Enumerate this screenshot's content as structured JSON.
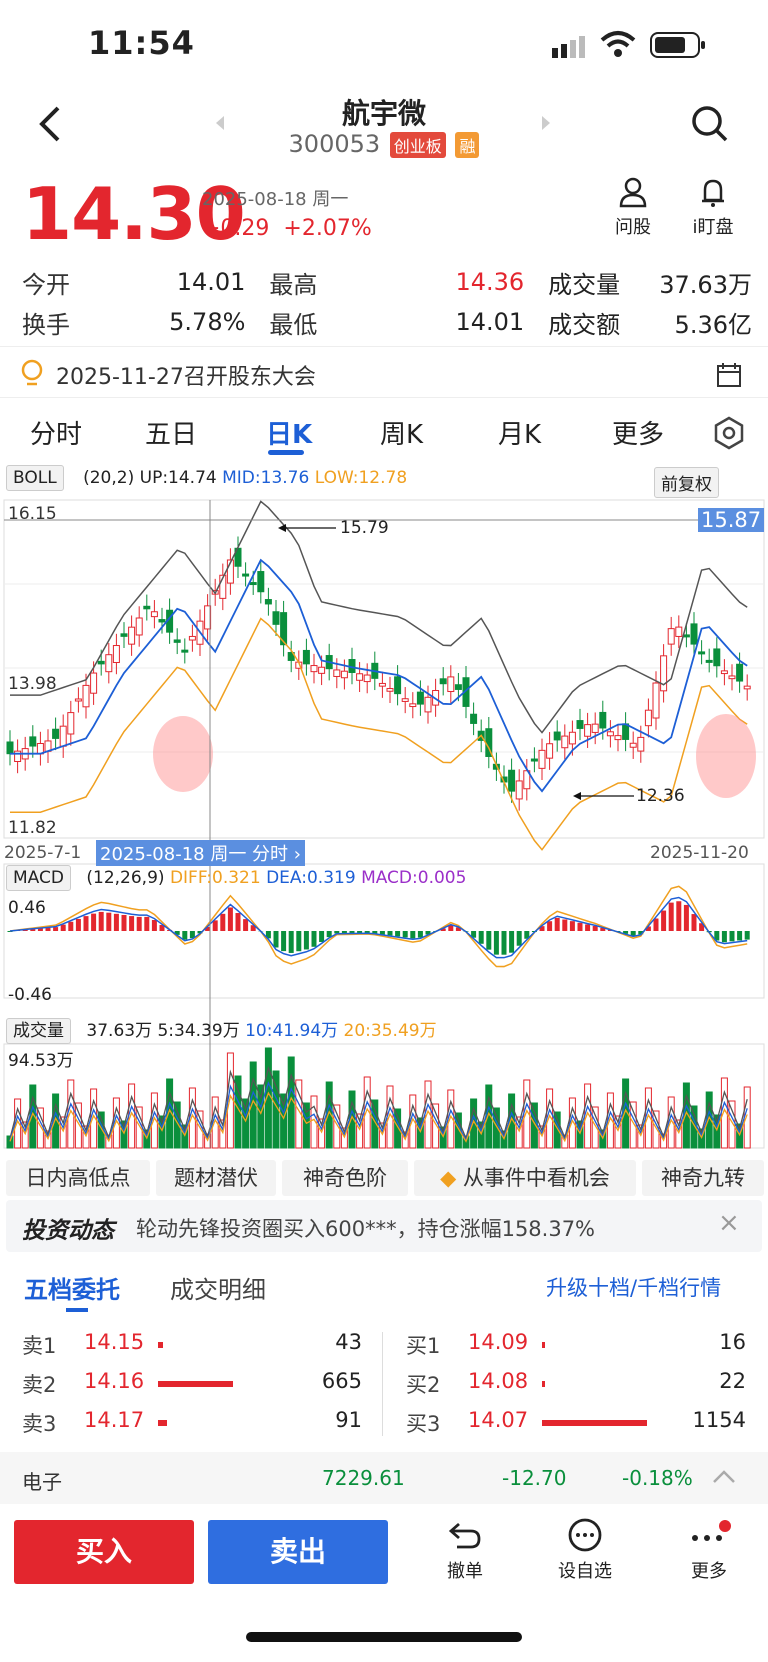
{
  "status": {
    "time": "11:54"
  },
  "header": {
    "title": "航宇微",
    "code": "300053",
    "board_tag": "创业板",
    "margin_tag": "融"
  },
  "quote": {
    "price": "14.30",
    "date": "2025-08-18 周一",
    "change": "+0.29",
    "change_pct": "+2.07%",
    "ask_label": "问股",
    "watch_label": "i盯盘"
  },
  "stats": {
    "open_label": "今开",
    "open": "14.01",
    "high_label": "最高",
    "high": "14.36",
    "vol_label": "成交量",
    "vol": "37.63万",
    "turnover_label": "换手",
    "turnover": "5.78%",
    "low_label": "最低",
    "low": "14.01",
    "amount_label": "成交额",
    "amount": "5.36亿"
  },
  "notice": {
    "text": "2025-11-27召开股东大会"
  },
  "tabs": [
    "分时",
    "五日",
    "日K",
    "周K",
    "月K",
    "更多"
  ],
  "active_tab": "日K",
  "boll": {
    "chip": "BOLL",
    "params": "(20,2)",
    "up": "UP:14.74",
    "mid": "MID:13.76",
    "low": "LOW:12.78",
    "adjust": "前复权",
    "y_top": "16.15",
    "y_mid": "13.98",
    "y_bottom": "11.82",
    "cursor_price": "15.87",
    "max_label": "15.79",
    "min_label": "12.36",
    "date_start": "2025-7-1",
    "date_cursor": "2025-08-18 周一 分时",
    "date_end": "2025-11-20"
  },
  "macd": {
    "chip": "MACD",
    "params": "(12,26,9)",
    "diff": "DIFF:0.321",
    "dea": "DEA:0.319",
    "macd": "MACD:0.005",
    "y_top": "0.46",
    "y_bottom": "-0.46"
  },
  "volume": {
    "chip": "成交量",
    "v": "37.63万",
    "ma5": "5:34.39万",
    "ma10": "10:41.94万",
    "ma20": "20:35.49万",
    "y_top": "94.53万"
  },
  "themes": [
    "日内高低点",
    "题材潜伏",
    "神奇色阶",
    "从事件中看机会",
    "神奇九转"
  ],
  "news": {
    "label": "投资动态",
    "text": "轮动先锋投资圈买入600***，持仓涨幅158.37%"
  },
  "orderbook": {
    "tab_active": "五档委托",
    "tab_other": "成交明细",
    "upgrade": "升级十档/千档行情",
    "asks": [
      {
        "label": "卖1",
        "price": "14.15",
        "qty": "43",
        "bar": 0.03
      },
      {
        "label": "卖2",
        "price": "14.16",
        "qty": "665",
        "bar": 0.5
      },
      {
        "label": "卖3",
        "price": "14.17",
        "qty": "91",
        "bar": 0.06
      }
    ],
    "bids": [
      {
        "label": "买1",
        "price": "14.09",
        "qty": "16",
        "bar": 0.01
      },
      {
        "label": "买2",
        "price": "14.08",
        "qty": "22",
        "bar": 0.015
      },
      {
        "label": "买3",
        "price": "14.07",
        "qty": "1154",
        "bar": 0.7
      }
    ]
  },
  "sector": {
    "name": "电子",
    "value": "7229.61",
    "change": "-12.70",
    "pct": "-0.18%"
  },
  "actions": {
    "buy": "买入",
    "sell": "卖出",
    "cancel": "撤单",
    "watchlist": "设自选",
    "more": "更多"
  },
  "colors": {
    "up": "#e3262e",
    "down": "#0a8f3c",
    "mid": "#1d5fd6",
    "low": "#f0a020",
    "accent": "#1d5fd6"
  }
}
